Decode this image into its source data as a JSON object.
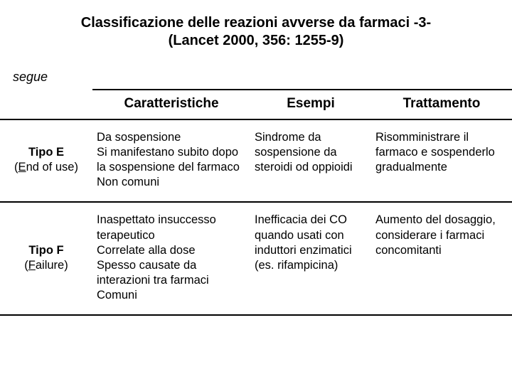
{
  "title_line1": "Classificazione delle reazioni avverse da farmaci  -3-",
  "title_line2": "(Lancet 2000, 356: 1255-9)",
  "segue": "segue",
  "headers": {
    "caratteristiche": "Caratteristiche",
    "esempi": "Esempi",
    "trattamento": "Trattamento"
  },
  "rows": [
    {
      "type_name": "Tipo E",
      "type_sub_prefix_u": "E",
      "type_sub_rest": "nd of use)",
      "char": "Da sospensione\nSi manifestano subito dopo la sospensione del farmaco\nNon comuni",
      "ex": "Sindrome da sospensione da steroidi od oppioidi",
      "treat": "Risomministrare il farmaco e sospenderlo gradualmente"
    },
    {
      "type_name": "Tipo F",
      "type_sub_prefix_u": "F",
      "type_sub_rest": "ailure)",
      "char": "Inaspettato insuccesso terapeutico\nCorrelate alla dose\nSpesso causate da interazioni tra farmaci\nComuni",
      "ex": "Inefficacia dei CO quando usati con induttori enzimatici (es. rifampicina)",
      "treat": "Aumento del dosaggio, considerare i farmaci concomitanti"
    }
  ]
}
